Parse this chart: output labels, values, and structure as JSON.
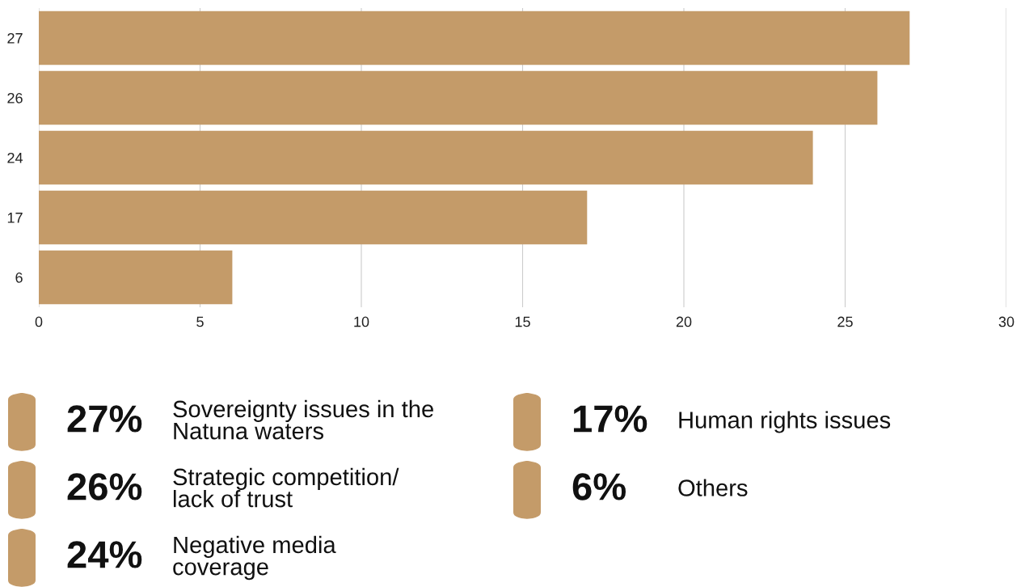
{
  "chart_data": {
    "type": "bar",
    "orientation": "horizontal",
    "categories": [
      "27",
      "26",
      "24",
      "17",
      "6"
    ],
    "values": [
      27,
      26,
      24,
      17,
      6
    ],
    "color": "#c49b69",
    "xlim": [
      0,
      30
    ],
    "xticks": [
      0,
      5,
      10,
      15,
      20,
      25,
      30
    ],
    "grid": "x",
    "annotations": [
      "27%",
      "Sovereignty issues in the\nNatuna waters",
      "26%",
      "Strategic competition/\nlack of trust",
      "24%",
      "Negative media\ncoverage",
      "17%",
      "Human rights issues",
      "6%",
      "Others"
    ]
  }
}
